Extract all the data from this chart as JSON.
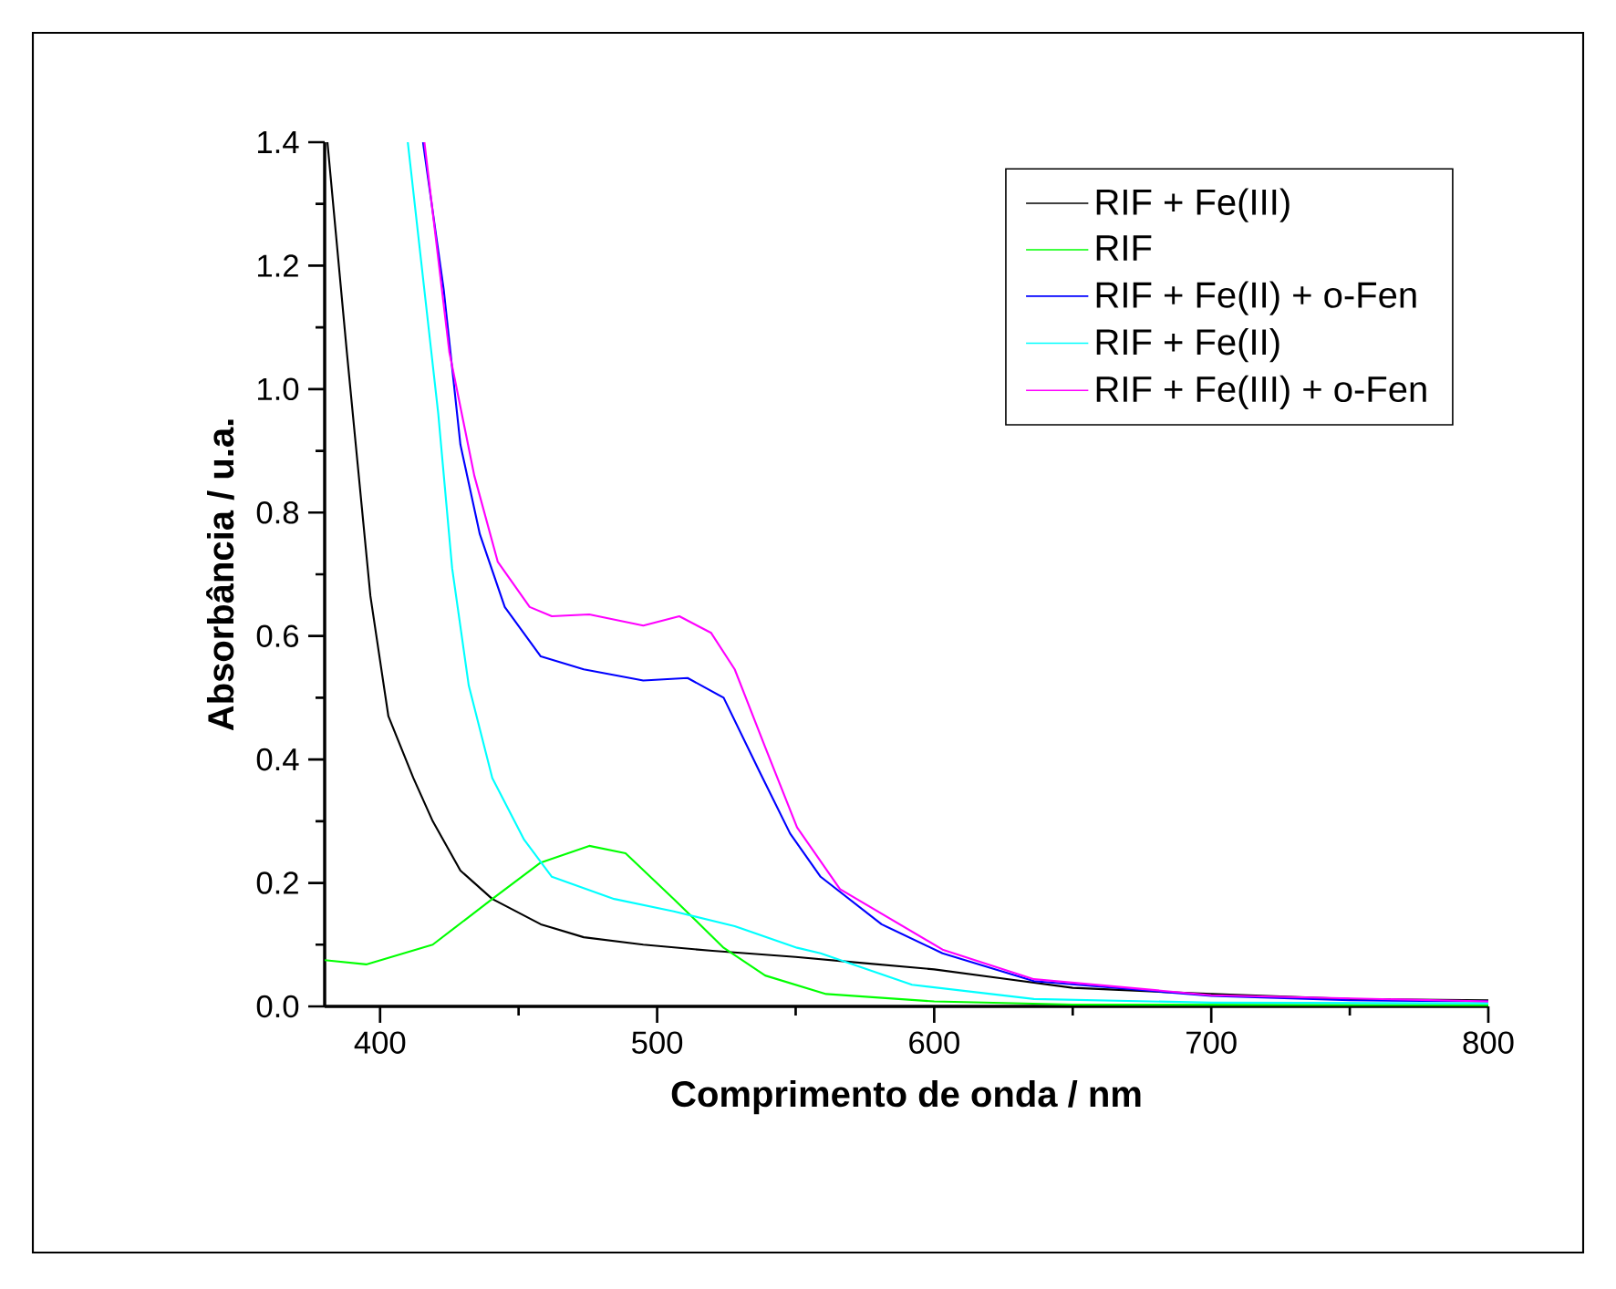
{
  "chart_data": {
    "type": "line",
    "xlabel": "Comprimento de onda / nm",
    "ylabel": "Absorbância / u.a.",
    "xlim": [
      380,
      800
    ],
    "ylim": [
      0,
      1.4
    ],
    "xticks": [
      400,
      500,
      600,
      700,
      800
    ],
    "yticks": [
      {
        "value": 0,
        "label": "0.0"
      },
      0.2,
      0.4,
      0.6,
      0.8,
      {
        "value": 1,
        "label": "1.0"
      },
      1.2,
      1.4
    ],
    "legend": "top right",
    "grid": false,
    "marker": "none",
    "line_style": "solid",
    "series": [
      {
        "name": "RIF + Fe(III)",
        "color": "#000000",
        "x": [
          381,
          388,
          396.5,
          403,
          412,
          419,
          429,
          440.5,
          458,
          473.5,
          495,
          520,
          550,
          575,
          600,
          625,
          650,
          700,
          750,
          800
        ],
        "values": [
          1.4,
          1.06,
          0.665,
          0.47,
          0.37,
          0.3,
          0.22,
          0.174,
          0.133,
          0.112,
          0.1,
          0.09,
          0.08,
          0.07,
          0.06,
          0.045,
          0.03,
          0.02,
          0.012,
          0.01
        ]
      },
      {
        "name": "RIF",
        "color": "#00ff00",
        "x": [
          380,
          395,
          419,
          440.5,
          458,
          475.5,
          488.6,
          506,
          524,
          539,
          561,
          600,
          650,
          800
        ],
        "values": [
          0.075,
          0.068,
          0.1,
          0.174,
          0.233,
          0.26,
          0.248,
          0.174,
          0.095,
          0.05,
          0.02,
          0.008,
          0.003,
          0.002
        ]
      },
      {
        "name": "RIF + Fe(II) + o-Fen",
        "color": "#0000ff",
        "x": [
          415.5,
          423,
          429,
          436,
          445,
          458,
          473.5,
          495,
          511,
          524,
          537,
          548,
          559,
          581,
          603,
          636,
          700,
          750,
          800
        ],
        "values": [
          1.4,
          1.16,
          0.91,
          0.765,
          0.647,
          0.567,
          0.546,
          0.528,
          0.532,
          0.5,
          0.38,
          0.28,
          0.21,
          0.133,
          0.086,
          0.041,
          0.017,
          0.01,
          0.008
        ]
      },
      {
        "name": "RIF + Fe(II)",
        "color": "#00ffff",
        "x": [
          410,
          416,
          421,
          426,
          432,
          440.5,
          452,
          462,
          484.5,
          506,
          528,
          550.5,
          559,
          592,
          636,
          700,
          800
        ],
        "values": [
          1.4,
          1.16,
          0.96,
          0.71,
          0.52,
          0.37,
          0.27,
          0.21,
          0.174,
          0.154,
          0.13,
          0.095,
          0.086,
          0.035,
          0.012,
          0.006,
          0.005
        ]
      },
      {
        "name": "RIF + Fe(III) + o-Fen",
        "color": "#ff00ff",
        "x": [
          416,
          425,
          434,
          442.5,
          454,
          462,
          475.5,
          495,
          508,
          519.5,
          528,
          539,
          550.5,
          566,
          603,
          636,
          700,
          800
        ],
        "values": [
          1.4,
          1.06,
          0.86,
          0.72,
          0.647,
          0.632,
          0.635,
          0.617,
          0.632,
          0.605,
          0.546,
          0.42,
          0.29,
          0.19,
          0.092,
          0.044,
          0.018,
          0.008
        ]
      }
    ]
  }
}
